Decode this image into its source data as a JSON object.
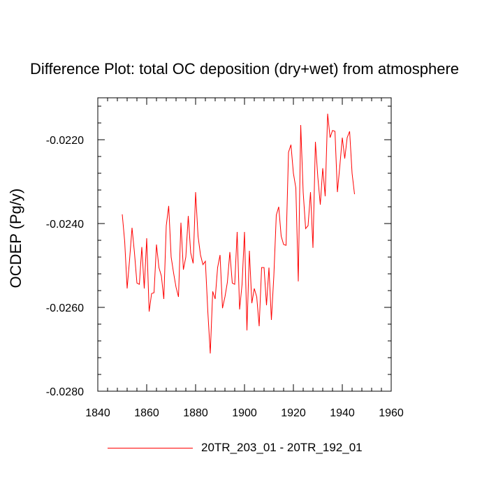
{
  "chart_data": {
    "type": "line",
    "title": "Difference Plot: total OC deposition (dry+wet) from atmosphere",
    "xlabel": "",
    "ylabel": "OCDEP  (Pg/y)",
    "xlim": [
      1840,
      1960
    ],
    "ylim": [
      -0.028,
      -0.021
    ],
    "x_ticks": [
      1840,
      1860,
      1880,
      1900,
      1920,
      1940,
      1960
    ],
    "x_tick_labels": [
      "1840",
      "1860",
      "1880",
      "1900",
      "1920",
      "1940",
      "1960"
    ],
    "y_ticks": [
      -0.028,
      -0.026,
      -0.024,
      -0.022
    ],
    "y_tick_labels": [
      "-0.0280",
      "-0.0260",
      "-0.0240",
      "-0.0220"
    ],
    "legend_position": "bottom-center",
    "series": [
      {
        "name": "20TR_203_01 - 20TR_192_01",
        "color": "#ff0000",
        "x": [
          1850,
          1851,
          1852,
          1853,
          1854,
          1855,
          1856,
          1857,
          1858,
          1859,
          1860,
          1861,
          1862,
          1863,
          1864,
          1865,
          1866,
          1867,
          1868,
          1869,
          1870,
          1871,
          1872,
          1873,
          1874,
          1875,
          1876,
          1877,
          1878,
          1879,
          1880,
          1881,
          1882,
          1883,
          1884,
          1885,
          1886,
          1887,
          1888,
          1889,
          1890,
          1891,
          1892,
          1893,
          1894,
          1895,
          1896,
          1897,
          1898,
          1899,
          1900,
          1901,
          1902,
          1903,
          1904,
          1905,
          1906,
          1907,
          1908,
          1909,
          1910,
          1911,
          1912,
          1913,
          1914,
          1915,
          1916,
          1917,
          1918,
          1919,
          1920,
          1921,
          1922,
          1923,
          1924,
          1925,
          1926,
          1927,
          1928,
          1929,
          1930,
          1931,
          1932,
          1933,
          1934,
          1935,
          1936,
          1937,
          1938,
          1939,
          1940,
          1941,
          1942,
          1943,
          1944,
          1945
        ],
        "values": [
          -0.02378,
          -0.02443,
          -0.02555,
          -0.02486,
          -0.0241,
          -0.0247,
          -0.02542,
          -0.02545,
          -0.02456,
          -0.02555,
          -0.02435,
          -0.0261,
          -0.02567,
          -0.02565,
          -0.0245,
          -0.02505,
          -0.02525,
          -0.0258,
          -0.02405,
          -0.02358,
          -0.0248,
          -0.02518,
          -0.02552,
          -0.02575,
          -0.02398,
          -0.0251,
          -0.0248,
          -0.02382,
          -0.0247,
          -0.02495,
          -0.02325,
          -0.0243,
          -0.02475,
          -0.02498,
          -0.0249,
          -0.0261,
          -0.0271,
          -0.02562,
          -0.0258,
          -0.02505,
          -0.02475,
          -0.02602,
          -0.02575,
          -0.0254,
          -0.02468,
          -0.02542,
          -0.02545,
          -0.0242,
          -0.02605,
          -0.02545,
          -0.0242,
          -0.02655,
          -0.02465,
          -0.0259,
          -0.02555,
          -0.02575,
          -0.02645,
          -0.02505,
          -0.02505,
          -0.02595,
          -0.02505,
          -0.0263,
          -0.02525,
          -0.0238,
          -0.0236,
          -0.0243,
          -0.0245,
          -0.02452,
          -0.0223,
          -0.02212,
          -0.0228,
          -0.02315,
          -0.02538,
          -0.02165,
          -0.02325,
          -0.02412,
          -0.02405,
          -0.02325,
          -0.02458,
          -0.02205,
          -0.0229,
          -0.02355,
          -0.02268,
          -0.02335,
          -0.02138,
          -0.02195,
          -0.02178,
          -0.0218,
          -0.02325,
          -0.02262,
          -0.02195,
          -0.02245,
          -0.02195,
          -0.0218,
          -0.0228,
          -0.0233
        ]
      }
    ]
  }
}
